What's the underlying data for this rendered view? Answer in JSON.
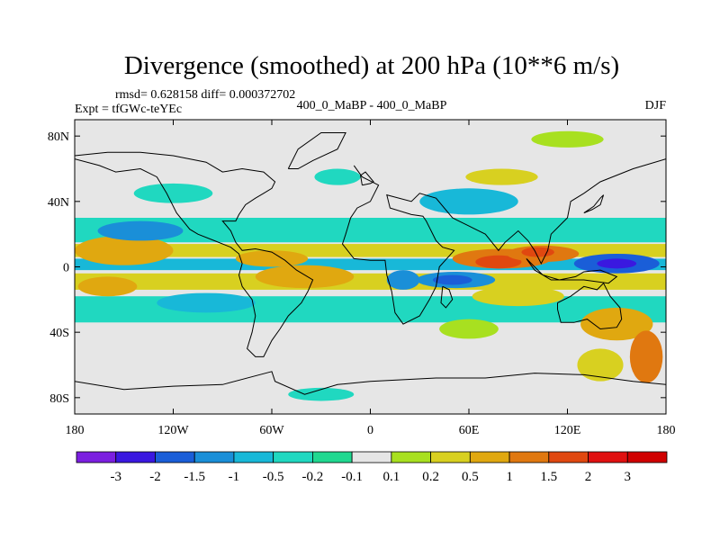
{
  "chart_data": {
    "type": "heatmap",
    "title": "Divergence (smoothed) at 200 hPa (10**6 m/s)",
    "stats": "rmsd= 0.628158 diff= 0.000372702",
    "comparison": "400_0_MaBP - 400_0_MaBP",
    "experiment": "Expt = tfGWc-teYEc",
    "season": "DJF",
    "x_ticks": [
      "180",
      "120W",
      "60W",
      "0",
      "60E",
      "120E",
      "180"
    ],
    "y_ticks": [
      "80N",
      "40N",
      "0",
      "40S",
      "80S"
    ],
    "x_tick_values": [
      -180,
      -120,
      -60,
      0,
      60,
      120,
      180
    ],
    "y_tick_values": [
      80,
      40,
      0,
      -40,
      -80
    ],
    "xlim": [
      -180,
      180
    ],
    "ylim": [
      -90,
      90
    ],
    "colorbar": {
      "labels": [
        "-3",
        "-2",
        "-1.5",
        "-1",
        "-0.5",
        "-0.2",
        "-0.1",
        "0.1",
        "0.2",
        "0.5",
        "1",
        "1.5",
        "2",
        "3"
      ],
      "levels": [
        -3,
        -2,
        -1.5,
        -1,
        -0.5,
        -0.2,
        -0.1,
        0.1,
        0.2,
        0.5,
        1,
        1.5,
        2,
        3
      ],
      "colors": [
        "#7b1fe0",
        "#3a18e0",
        "#1a5ed8",
        "#1a8fd8",
        "#18b8d8",
        "#20d8c0",
        "#20d890",
        "#e6e6e6",
        "#a8e020",
        "#d8d020",
        "#e0a810",
        "#e07810",
        "#e04810",
        "#e01010",
        "#d00000"
      ]
    },
    "features": [
      {
        "kind": "band",
        "lon": [
          -180,
          180
        ],
        "lat": [
          6,
          14
        ],
        "value": 0.5
      },
      {
        "kind": "band",
        "lon": [
          -180,
          180
        ],
        "lat": [
          -2,
          5
        ],
        "value": -0.5
      },
      {
        "kind": "band",
        "lon": [
          -180,
          180
        ],
        "lat": [
          -14,
          -4
        ],
        "value": 0.5
      },
      {
        "kind": "band",
        "lon": [
          -180,
          180
        ],
        "lat": [
          -34,
          -18
        ],
        "value": -0.2
      },
      {
        "kind": "band",
        "lon": [
          -180,
          180
        ],
        "lat": [
          15,
          30
        ],
        "value": -0.2
      },
      {
        "kind": "blob",
        "lon": -150,
        "lat": 10,
        "rx": 30,
        "ry": 9,
        "value": 1
      },
      {
        "kind": "blob",
        "lon": -160,
        "lat": -12,
        "rx": 18,
        "ry": 6,
        "value": 1
      },
      {
        "kind": "blob",
        "lon": -40,
        "lat": -6,
        "rx": 30,
        "ry": 7,
        "value": 1
      },
      {
        "kind": "blob",
        "lon": -60,
        "lat": 5,
        "rx": 22,
        "ry": 5,
        "value": 1
      },
      {
        "kind": "blob",
        "lon": 80,
        "lat": 5,
        "rx": 30,
        "ry": 6,
        "value": 1.5
      },
      {
        "kind": "blob",
        "lon": 78,
        "lat": 3,
        "rx": 14,
        "ry": 4,
        "value": 2
      },
      {
        "kind": "blob",
        "lon": 105,
        "lat": 8,
        "rx": 22,
        "ry": 5,
        "value": 1.5
      },
      {
        "kind": "blob",
        "lon": 102,
        "lat": 9,
        "rx": 10,
        "ry": 3,
        "value": 2
      },
      {
        "kind": "blob",
        "lon": 150,
        "lat": 2,
        "rx": 26,
        "ry": 6,
        "value": -1.5
      },
      {
        "kind": "blob",
        "lon": 150,
        "lat": 2,
        "rx": 12,
        "ry": 3,
        "value": -2
      },
      {
        "kind": "blob",
        "lon": 52,
        "lat": -8,
        "rx": 24,
        "ry": 5,
        "value": -1
      },
      {
        "kind": "blob",
        "lon": 50,
        "lat": -8,
        "rx": 12,
        "ry": 3,
        "value": -1.5
      },
      {
        "kind": "blob",
        "lon": 20,
        "lat": -8,
        "rx": 10,
        "ry": 6,
        "value": -1
      },
      {
        "kind": "blob",
        "lon": -140,
        "lat": 22,
        "rx": 26,
        "ry": 6,
        "value": -1
      },
      {
        "kind": "blob",
        "lon": -100,
        "lat": -22,
        "rx": 30,
        "ry": 6,
        "value": -0.5
      },
      {
        "kind": "blob",
        "lon": 90,
        "lat": -18,
        "rx": 28,
        "ry": 6,
        "value": 0.5
      },
      {
        "kind": "blob",
        "lon": 60,
        "lat": -38,
        "rx": 18,
        "ry": 6,
        "value": 0.2
      },
      {
        "kind": "blob",
        "lon": 150,
        "lat": -35,
        "rx": 22,
        "ry": 10,
        "value": 1
      },
      {
        "kind": "blob",
        "lon": 168,
        "lat": -55,
        "rx": 10,
        "ry": 16,
        "value": 1.5
      },
      {
        "kind": "blob",
        "lon": 140,
        "lat": -60,
        "rx": 14,
        "ry": 10,
        "value": 0.5
      },
      {
        "kind": "blob",
        "lon": -120,
        "lat": 45,
        "rx": 24,
        "ry": 6,
        "value": -0.2
      },
      {
        "kind": "blob",
        "lon": 60,
        "lat": 40,
        "rx": 30,
        "ry": 8,
        "value": -0.5
      },
      {
        "kind": "blob",
        "lon": 80,
        "lat": 55,
        "rx": 22,
        "ry": 5,
        "value": 0.5
      },
      {
        "kind": "blob",
        "lon": -20,
        "lat": 55,
        "rx": 14,
        "ry": 5,
        "value": -0.2
      },
      {
        "kind": "blob",
        "lon": 120,
        "lat": 78,
        "rx": 22,
        "ry": 5,
        "value": 0.2
      },
      {
        "kind": "blob",
        "lon": -30,
        "lat": -78,
        "rx": 20,
        "ry": 4,
        "value": -0.2
      }
    ]
  },
  "coastline_lonlat": [
    [
      [
        -10,
        62
      ],
      [
        -5,
        55
      ],
      [
        5,
        50
      ],
      [
        0,
        40
      ],
      [
        -8,
        36
      ],
      [
        -12,
        30
      ],
      [
        -15,
        20
      ],
      [
        -17,
        14
      ],
      [
        -10,
        5
      ],
      [
        0,
        4
      ],
      [
        9,
        4
      ],
      [
        10,
        -5
      ],
      [
        13,
        -15
      ],
      [
        15,
        -28
      ],
      [
        20,
        -35
      ],
      [
        30,
        -30
      ],
      [
        36,
        -20
      ],
      [
        40,
        -12
      ],
      [
        42,
        0
      ],
      [
        51,
        10
      ],
      [
        44,
        12
      ],
      [
        40,
        16
      ],
      [
        34,
        28
      ],
      [
        32,
        31
      ],
      [
        25,
        32
      ],
      [
        12,
        36
      ],
      [
        10,
        44
      ],
      [
        25,
        40
      ],
      [
        30,
        45
      ],
      [
        40,
        42
      ],
      [
        50,
        30
      ],
      [
        60,
        25
      ],
      [
        70,
        20
      ],
      [
        78,
        10
      ],
      [
        82,
        15
      ],
      [
        90,
        22
      ],
      [
        96,
        16
      ],
      [
        100,
        10
      ],
      [
        104,
        2
      ],
      [
        108,
        10
      ],
      [
        110,
        20
      ],
      [
        120,
        30
      ],
      [
        122,
        40
      ],
      [
        130,
        45
      ],
      [
        140,
        52
      ],
      [
        160,
        60
      ],
      [
        180,
        66
      ]
    ],
    [
      [
        -180,
        66
      ],
      [
        -165,
        62
      ],
      [
        -155,
        58
      ],
      [
        -140,
        60
      ],
      [
        -130,
        55
      ],
      [
        -124,
        45
      ],
      [
        -118,
        33
      ],
      [
        -110,
        23
      ],
      [
        -105,
        20
      ],
      [
        -95,
        16
      ],
      [
        -85,
        12
      ],
      [
        -80,
        8
      ],
      [
        -78,
        2
      ],
      [
        -80,
        -5
      ],
      [
        -78,
        -12
      ],
      [
        -72,
        -20
      ],
      [
        -70,
        -30
      ],
      [
        -72,
        -40
      ],
      [
        -75,
        -50
      ],
      [
        -70,
        -55
      ],
      [
        -65,
        -55
      ],
      [
        -60,
        -45
      ],
      [
        -55,
        -38
      ],
      [
        -50,
        -30
      ],
      [
        -42,
        -22
      ],
      [
        -38,
        -15
      ],
      [
        -35,
        -8
      ],
      [
        -45,
        -2
      ],
      [
        -52,
        4
      ],
      [
        -60,
        9
      ],
      [
        -70,
        11
      ],
      [
        -78,
        10
      ],
      [
        -82,
        15
      ],
      [
        -85,
        22
      ],
      [
        -90,
        28
      ],
      [
        -82,
        28
      ],
      [
        -80,
        32
      ],
      [
        -76,
        38
      ],
      [
        -70,
        42
      ],
      [
        -65,
        45
      ],
      [
        -60,
        48
      ],
      [
        -58,
        52
      ],
      [
        -65,
        58
      ],
      [
        -78,
        60
      ],
      [
        -90,
        58
      ],
      [
        -100,
        64
      ],
      [
        -120,
        68
      ],
      [
        -140,
        70
      ],
      [
        -160,
        70
      ],
      [
        -180,
        68
      ]
    ],
    [
      [
        114,
        -22
      ],
      [
        122,
        -18
      ],
      [
        130,
        -12
      ],
      [
        138,
        -14
      ],
      [
        142,
        -10
      ],
      [
        146,
        -18
      ],
      [
        152,
        -25
      ],
      [
        153,
        -32
      ],
      [
        150,
        -37
      ],
      [
        140,
        -38
      ],
      [
        132,
        -32
      ],
      [
        124,
        -34
      ],
      [
        116,
        -34
      ],
      [
        114,
        -26
      ],
      [
        114,
        -22
      ]
    ],
    [
      [
        95,
        5
      ],
      [
        105,
        -5
      ],
      [
        115,
        -8
      ],
      [
        125,
        -6
      ],
      [
        130,
        -3
      ],
      [
        140,
        -2
      ],
      [
        150,
        -6
      ],
      [
        145,
        -10
      ],
      [
        130,
        -8
      ],
      [
        110,
        -8
      ],
      [
        100,
        -2
      ],
      [
        95,
        5
      ]
    ],
    [
      [
        -180,
        -70
      ],
      [
        -150,
        -75
      ],
      [
        -120,
        -73
      ],
      [
        -90,
        -72
      ],
      [
        -60,
        -64
      ],
      [
        -58,
        -70
      ],
      [
        -40,
        -78
      ],
      [
        -20,
        -72
      ],
      [
        0,
        -70
      ],
      [
        40,
        -68
      ],
      [
        70,
        -68
      ],
      [
        100,
        -65
      ],
      [
        130,
        -66
      ],
      [
        160,
        -70
      ],
      [
        180,
        -72
      ]
    ],
    [
      [
        -50,
        60
      ],
      [
        -44,
        72
      ],
      [
        -30,
        82
      ],
      [
        -15,
        82
      ],
      [
        -20,
        72
      ],
      [
        -35,
        65
      ],
      [
        -44,
        60
      ],
      [
        -50,
        60
      ]
    ],
    [
      [
        44,
        -12
      ],
      [
        48,
        -14
      ],
      [
        50,
        -20
      ],
      [
        46,
        -25
      ],
      [
        43,
        -22
      ],
      [
        44,
        -12
      ]
    ],
    [
      [
        -5,
        50
      ],
      [
        0,
        51
      ],
      [
        2,
        52
      ],
      [
        -3,
        58
      ],
      [
        -6,
        56
      ],
      [
        -5,
        50
      ]
    ],
    [
      [
        130,
        33
      ],
      [
        135,
        35
      ],
      [
        140,
        38
      ],
      [
        142,
        44
      ],
      [
        140,
        42
      ],
      [
        136,
        37
      ],
      [
        130,
        33
      ]
    ]
  ]
}
